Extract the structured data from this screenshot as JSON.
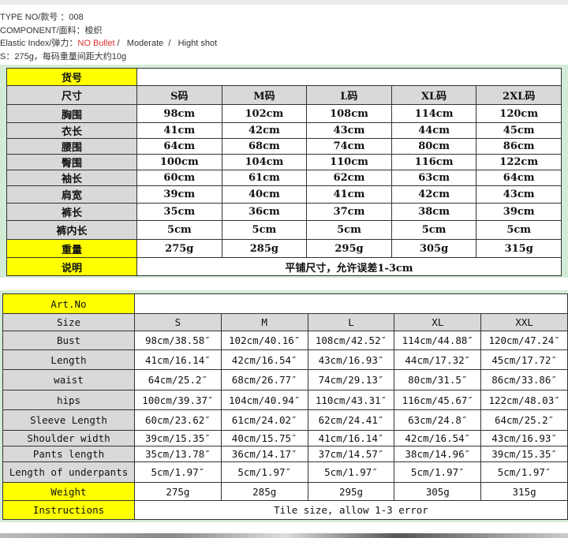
{
  "info": {
    "type_no": "TYPE NO/款号 ：008",
    "component": "COMPONENT/面料：梭织",
    "elastic_label": "Elastic Index/弹力：",
    "elastic_selected": "NO Bullet",
    "elastic_sep1": " /   ",
    "elastic_moderate": "Moderate",
    "elastic_sep2": "  /   ",
    "elastic_high": "Hight shot",
    "weight_note": "S：275g，每码重量间距大约10g"
  },
  "colors": {
    "highlight": "#ffff00",
    "header_gray": "#d9d9d9",
    "panel_green": "#d4ecd6",
    "selected_red": "#e0302f"
  },
  "table_cn": {
    "art_label": "货号",
    "size_label": "尺寸",
    "sizes": [
      "S码",
      "M码",
      "L码",
      "XL码",
      "2XL码"
    ],
    "rows": [
      {
        "label": "胸围",
        "values": [
          "98cm",
          "102cm",
          "108cm",
          "114cm",
          "120cm"
        ]
      },
      {
        "label": "衣长",
        "values": [
          "41cm",
          "42cm",
          "43cm",
          "44cm",
          "45cm"
        ]
      },
      {
        "label": "腰围",
        "values": [
          "64cm",
          "68cm",
          "74cm",
          "80cm",
          "86cm"
        ]
      },
      {
        "label": "臀围",
        "values": [
          "100cm",
          "104cm",
          "110cm",
          "116cm",
          "122cm"
        ]
      },
      {
        "label": "袖长",
        "values": [
          "60cm",
          "61cm",
          "62cm",
          "63cm",
          "64cm"
        ]
      },
      {
        "label": "肩宽",
        "values": [
          "39cm",
          "40cm",
          "41cm",
          "42cm",
          "43cm"
        ]
      },
      {
        "label": "裤长",
        "values": [
          "35cm",
          "36cm",
          "37cm",
          "38cm",
          "39cm"
        ]
      },
      {
        "label": "裤内长",
        "values": [
          "5cm",
          "5cm",
          "5cm",
          "5cm",
          "5cm"
        ]
      }
    ],
    "weight_label": "重量",
    "weights": [
      "275g",
      "285g",
      "295g",
      "305g",
      "315g"
    ],
    "note_label": "说明",
    "note": "平铺尺寸，允许误差1-3cm"
  },
  "table_en": {
    "art_label": "Art.No",
    "size_label": "Size",
    "sizes": [
      "S",
      "M",
      "L",
      "XL",
      "XXL"
    ],
    "rows": [
      {
        "label": "Bust",
        "values": [
          "98cm/38.58″",
          "102cm/40.16″",
          "108cm/42.52″",
          "114cm/44.88″",
          "120cm/47.24″"
        ]
      },
      {
        "label": "Length",
        "values": [
          "41cm/16.14″",
          "42cm/16.54″",
          "43cm/16.93″",
          "44cm/17.32″",
          "45cm/17.72″"
        ]
      },
      {
        "label": "waist",
        "values": [
          "64cm/25.2″",
          "68cm/26.77″",
          "74cm/29.13″",
          "80cm/31.5″",
          "86cm/33.86″"
        ]
      },
      {
        "label": "hips",
        "values": [
          "100cm/39.37″",
          "104cm/40.94″",
          "110cm/43.31″",
          "116cm/45.67″",
          "122cm/48.03″"
        ]
      },
      {
        "label": "Sleeve Length",
        "values": [
          "60cm/23.62″",
          "61cm/24.02″",
          "62cm/24.41″",
          "63cm/24.8″",
          "64cm/25.2″"
        ]
      },
      {
        "label": "Shoulder width",
        "values": [
          "39cm/15.35″",
          "40cm/15.75″",
          "41cm/16.14″",
          "42cm/16.54″",
          "43cm/16.93″"
        ]
      },
      {
        "label": "Pants length",
        "values": [
          "35cm/13.78″",
          "36cm/14.17″",
          "37cm/14.57″",
          "38cm/14.96″",
          "39cm/15.35″"
        ]
      },
      {
        "label": "Length of underpants",
        "values": [
          "5cm/1.97″",
          "5cm/1.97″",
          "5cm/1.97″",
          "5cm/1.97″",
          "5cm/1.97″"
        ]
      }
    ],
    "weight_label": "Weight",
    "weights": [
      "275g",
      "285g",
      "295g",
      "305g",
      "315g"
    ],
    "note_label": "Instructions",
    "note": "Tile size, allow 1-3 error"
  }
}
